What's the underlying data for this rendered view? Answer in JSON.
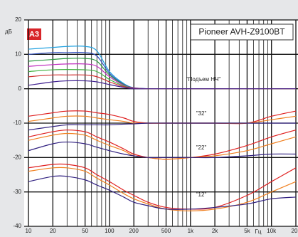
{
  "chart_data": {
    "type": "line",
    "title": "Pioneer AVH-Z9100BT",
    "logo": "A3",
    "y_label": "дБ",
    "x_label": "Гц",
    "annotations": [
      "\"Подъем НЧ\"",
      "\"32\"",
      "\"22\"",
      "\"12\""
    ],
    "log_x": true,
    "grid": true,
    "xlim": [
      10,
      20000
    ],
    "ylim": [
      -40,
      20
    ],
    "xticks": [
      10,
      20,
      50,
      100,
      200,
      500,
      {
        "value": 1000,
        "label": "1k"
      },
      {
        "value": 2000,
        "label": "2k"
      },
      {
        "value": 5000,
        "label": "5k"
      },
      {
        "value": 10000,
        "label": "10k"
      },
      {
        "value": 20000,
        "label": "20k"
      }
    ],
    "xminorticks": [
      30,
      40,
      60,
      70,
      80,
      90,
      300,
      400,
      600,
      700,
      800,
      900,
      3000,
      4000,
      6000,
      7000,
      8000,
      9000
    ],
    "yticks": [
      20,
      10,
      0,
      -10,
      -20,
      -30,
      -40
    ],
    "x": [
      10,
      20,
      30,
      50,
      70,
      100,
      150,
      200,
      300,
      500,
      1000,
      2000,
      5000,
      10000,
      20000
    ],
    "series": [
      {
        "color": "#1ea0e0",
        "values": [
          11.5,
          12,
          12.3,
          12.3,
          11,
          5,
          1.5,
          0.3,
          0,
          0,
          0,
          0,
          0,
          0,
          0
        ]
      },
      {
        "color": "#3050c0",
        "values": [
          10,
          10.5,
          10.5,
          10.5,
          9.5,
          4.5,
          1.3,
          0.3,
          0,
          0,
          0,
          0,
          0,
          0,
          0
        ]
      },
      {
        "color": "#2a9a40",
        "values": [
          8,
          8.5,
          8.8,
          8.8,
          8,
          4,
          1.2,
          0.2,
          0,
          0,
          0,
          0,
          0,
          0,
          0
        ]
      },
      {
        "color": "#c030c0",
        "values": [
          6.5,
          7,
          7.2,
          7.2,
          6.5,
          3.5,
          1,
          0.2,
          0,
          0,
          0,
          0,
          0,
          0,
          0
        ]
      },
      {
        "color": "#40b040",
        "values": [
          5,
          5.5,
          5.6,
          5.5,
          5,
          2.7,
          0.8,
          0.1,
          0,
          0,
          0,
          0,
          0,
          0,
          0
        ]
      },
      {
        "color": "#d03030",
        "values": [
          3.5,
          4,
          4,
          4,
          3.5,
          2,
          0.6,
          0.1,
          0,
          0,
          0,
          0,
          0,
          0,
          0
        ]
      },
      {
        "color": "#402090",
        "values": [
          1,
          2,
          2.3,
          2.3,
          2,
          1.2,
          0.4,
          0,
          0,
          0,
          0,
          0,
          0,
          0,
          0
        ]
      },
      {
        "color": "#e02020",
        "values": [
          -8,
          -7,
          -6.5,
          -6.5,
          -7,
          -7.5,
          -8.5,
          -9.5,
          -10,
          -10,
          -10,
          -10,
          -10,
          -8,
          -6.5
        ]
      },
      {
        "color": "#f08020",
        "values": [
          -9.5,
          -8.5,
          -8,
          -8,
          -8.5,
          -9,
          -9.5,
          -10,
          -10,
          -10,
          -10,
          -10,
          -10,
          -9,
          -8
        ]
      },
      {
        "color": "#302080",
        "values": [
          -12,
          -11,
          -10.5,
          -10.5,
          -10.5,
          -10.5,
          -10.3,
          -10.2,
          -10,
          -10,
          -10,
          -10,
          -10,
          -10,
          -10
        ]
      },
      {
        "color": "#e02020",
        "values": [
          -14,
          -12.5,
          -12,
          -12.5,
          -14,
          -15.5,
          -17.5,
          -19,
          -20,
          -20.5,
          -20,
          -19,
          -16.5,
          -14,
          -12
        ]
      },
      {
        "color": "#f08020",
        "values": [
          -15,
          -13.5,
          -13,
          -13.5,
          -15,
          -16.5,
          -18,
          -19.5,
          -20,
          -20.5,
          -20,
          -19.5,
          -18,
          -16,
          -14
        ]
      },
      {
        "color": "#302080",
        "values": [
          -18,
          -16,
          -15.5,
          -16,
          -17,
          -18,
          -19,
          -19.5,
          -20,
          -20,
          -20,
          -20,
          -19.5,
          -19,
          -19
        ]
      },
      {
        "color": "#e02020",
        "values": [
          -23,
          -22,
          -22,
          -23,
          -25,
          -27,
          -29.5,
          -31,
          -33,
          -34.5,
          -35,
          -34.5,
          -31,
          -27,
          -23
        ]
      },
      {
        "color": "#f08020",
        "values": [
          -24,
          -23,
          -23,
          -24,
          -26,
          -28,
          -30.5,
          -32,
          -33.5,
          -35,
          -35.5,
          -35,
          -33,
          -30,
          -27
        ]
      },
      {
        "color": "#302080",
        "values": [
          -27,
          -25.5,
          -25.5,
          -26.5,
          -28,
          -29.5,
          -31.5,
          -33,
          -34,
          -35,
          -35,
          -34.5,
          -33.5,
          -32,
          -31.5
        ]
      }
    ]
  }
}
